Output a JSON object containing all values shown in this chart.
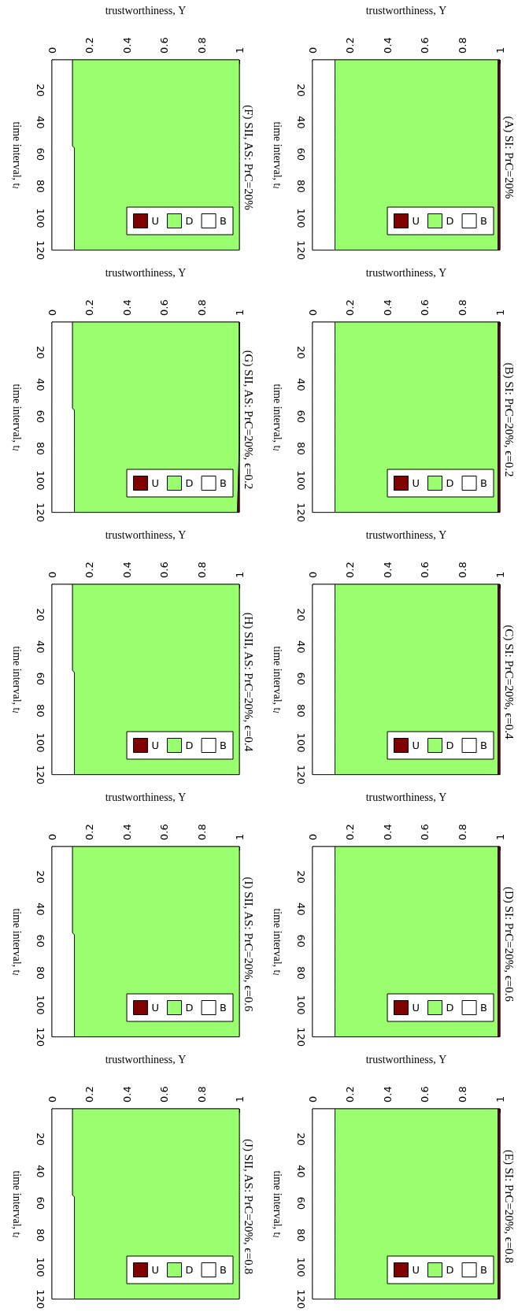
{
  "chart_data": [
    {
      "type": "area",
      "stacked": true,
      "orientation": "horizontal",
      "title": "(A) SI: PrC=20%",
      "xlabel": "trustworthiness, Υ",
      "ylabel": "time interval, t$_{l}$",
      "x": [
        1,
        10,
        20,
        30,
        40,
        50,
        60,
        70,
        80,
        90,
        100,
        110,
        120
      ],
      "xlim": [
        0,
        1
      ],
      "xticks": [
        0,
        0.2,
        0.4,
        0.6,
        0.8,
        1
      ],
      "ylim": [
        120,
        1
      ],
      "yticks": [
        20,
        40,
        60,
        80,
        100,
        120
      ],
      "legend": "bottom right",
      "series": [
        {
          "name": "B",
          "color": "#ffffff",
          "values": [
            0.12,
            0.12,
            0.12,
            0.12,
            0.12,
            0.12,
            0.12,
            0.12,
            0.12,
            0.12,
            0.12,
            0.12,
            0.12
          ]
        },
        {
          "name": "D",
          "color": "#99ff6e",
          "values": [
            0.87,
            0.87,
            0.87,
            0.87,
            0.87,
            0.87,
            0.87,
            0.87,
            0.87,
            0.87,
            0.87,
            0.87,
            0.87
          ]
        },
        {
          "name": "U",
          "color": "#7f0000",
          "values": [
            0.01,
            0.01,
            0.01,
            0.01,
            0.01,
            0.01,
            0.01,
            0.01,
            0.01,
            0.01,
            0.01,
            0.01,
            0.01
          ]
        }
      ]
    },
    {
      "type": "area",
      "stacked": true,
      "orientation": "horizontal",
      "title": "(B) SI: PrC=20%, ϵ=0.2",
      "xlabel": "trustworthiness, Υ",
      "ylabel": "time interval, t$_{l}$",
      "x": [
        1,
        10,
        20,
        30,
        40,
        50,
        60,
        70,
        80,
        90,
        100,
        110,
        120
      ],
      "xlim": [
        0,
        1
      ],
      "xticks": [
        0,
        0.2,
        0.4,
        0.6,
        0.8,
        1
      ],
      "ylim": [
        120,
        1
      ],
      "yticks": [
        20,
        40,
        60,
        80,
        100,
        120
      ],
      "legend": "bottom right",
      "series": [
        {
          "name": "B",
          "color": "#ffffff",
          "values": [
            0.12,
            0.12,
            0.12,
            0.12,
            0.12,
            0.12,
            0.12,
            0.12,
            0.12,
            0.12,
            0.12,
            0.12,
            0.12
          ]
        },
        {
          "name": "D",
          "color": "#99ff6e",
          "values": [
            0.87,
            0.87,
            0.87,
            0.87,
            0.87,
            0.87,
            0.87,
            0.87,
            0.87,
            0.87,
            0.87,
            0.87,
            0.87
          ]
        },
        {
          "name": "U",
          "color": "#7f0000",
          "values": [
            0.01,
            0.01,
            0.01,
            0.01,
            0.01,
            0.01,
            0.01,
            0.01,
            0.01,
            0.01,
            0.01,
            0.01,
            0.01
          ]
        }
      ]
    },
    {
      "type": "area",
      "stacked": true,
      "orientation": "horizontal",
      "title": "(C) SI: PrC=20%, ϵ=0.4",
      "xlabel": "trustworthiness, Υ",
      "ylabel": "time interval, t$_{l}$",
      "x": [
        1,
        10,
        20,
        30,
        40,
        50,
        60,
        70,
        80,
        90,
        100,
        110,
        120
      ],
      "xlim": [
        0,
        1
      ],
      "xticks": [
        0,
        0.2,
        0.4,
        0.6,
        0.8,
        1
      ],
      "ylim": [
        120,
        1
      ],
      "yticks": [
        20,
        40,
        60,
        80,
        100,
        120
      ],
      "legend": "bottom right",
      "series": [
        {
          "name": "B",
          "color": "#ffffff",
          "values": [
            0.12,
            0.12,
            0.12,
            0.12,
            0.12,
            0.12,
            0.12,
            0.12,
            0.12,
            0.12,
            0.12,
            0.12,
            0.12
          ]
        },
        {
          "name": "D",
          "color": "#99ff6e",
          "values": [
            0.87,
            0.87,
            0.87,
            0.87,
            0.87,
            0.87,
            0.87,
            0.87,
            0.87,
            0.87,
            0.87,
            0.87,
            0.87
          ]
        },
        {
          "name": "U",
          "color": "#7f0000",
          "values": [
            0.01,
            0.01,
            0.01,
            0.01,
            0.01,
            0.01,
            0.01,
            0.01,
            0.01,
            0.01,
            0.01,
            0.01,
            0.01
          ]
        }
      ]
    },
    {
      "type": "area",
      "stacked": true,
      "orientation": "horizontal",
      "title": "(D) SI: PrC=20%, ϵ=0.6",
      "xlabel": "trustworthiness, Υ",
      "ylabel": "time interval, t$_{l}$",
      "x": [
        1,
        10,
        20,
        30,
        40,
        50,
        60,
        70,
        80,
        90,
        100,
        110,
        120
      ],
      "xlim": [
        0,
        1
      ],
      "xticks": [
        0,
        0.2,
        0.4,
        0.6,
        0.8,
        1
      ],
      "ylim": [
        120,
        1
      ],
      "yticks": [
        20,
        40,
        60,
        80,
        100,
        120
      ],
      "legend": "bottom right",
      "series": [
        {
          "name": "B",
          "color": "#ffffff",
          "values": [
            0.12,
            0.12,
            0.12,
            0.12,
            0.12,
            0.12,
            0.12,
            0.12,
            0.12,
            0.12,
            0.12,
            0.12,
            0.12
          ]
        },
        {
          "name": "D",
          "color": "#99ff6e",
          "values": [
            0.87,
            0.87,
            0.87,
            0.87,
            0.87,
            0.87,
            0.87,
            0.87,
            0.87,
            0.87,
            0.87,
            0.87,
            0.87
          ]
        },
        {
          "name": "U",
          "color": "#7f0000",
          "values": [
            0.01,
            0.01,
            0.01,
            0.01,
            0.01,
            0.01,
            0.01,
            0.01,
            0.01,
            0.01,
            0.01,
            0.01,
            0.01
          ]
        }
      ]
    },
    {
      "type": "area",
      "stacked": true,
      "orientation": "horizontal",
      "title": "(E) SI: PrC=20%, ϵ=0.8",
      "xlabel": "trustworthiness, Υ",
      "ylabel": "time interval, t$_{l}$",
      "x": [
        1,
        10,
        20,
        30,
        40,
        50,
        60,
        70,
        80,
        90,
        100,
        110,
        120
      ],
      "xlim": [
        0,
        1
      ],
      "xticks": [
        0,
        0.2,
        0.4,
        0.6,
        0.8,
        1
      ],
      "ylim": [
        120,
        1
      ],
      "yticks": [
        20,
        40,
        60,
        80,
        100,
        120
      ],
      "legend": "bottom right",
      "series": [
        {
          "name": "B",
          "color": "#ffffff",
          "values": [
            0.12,
            0.12,
            0.12,
            0.12,
            0.12,
            0.12,
            0.12,
            0.12,
            0.12,
            0.12,
            0.12,
            0.12,
            0.12
          ]
        },
        {
          "name": "D",
          "color": "#99ff6e",
          "values": [
            0.87,
            0.87,
            0.87,
            0.87,
            0.87,
            0.87,
            0.87,
            0.87,
            0.87,
            0.87,
            0.87,
            0.87,
            0.87
          ]
        },
        {
          "name": "U",
          "color": "#7f0000",
          "values": [
            0.01,
            0.01,
            0.01,
            0.01,
            0.01,
            0.01,
            0.01,
            0.01,
            0.01,
            0.01,
            0.01,
            0.01,
            0.01
          ]
        }
      ]
    },
    {
      "type": "area",
      "stacked": true,
      "orientation": "horizontal",
      "title": "(F) SII, AS: PrC=20%",
      "xlabel": "trustworthiness, Υ",
      "ylabel": "time interval, t$_{l}$",
      "x": [
        1,
        55,
        56,
        120
      ],
      "xlim": [
        0,
        1
      ],
      "xticks": [
        0,
        0.2,
        0.4,
        0.6,
        0.8,
        1
      ],
      "ylim": [
        120,
        1
      ],
      "yticks": [
        20,
        40,
        60,
        80,
        100,
        120
      ],
      "legend": "bottom right",
      "series": [
        {
          "name": "B",
          "color": "#ffffff",
          "values": [
            0.11,
            0.11,
            0.12,
            0.12
          ]
        },
        {
          "name": "D",
          "color": "#99ff6e",
          "values": [
            0.89,
            0.89,
            0.88,
            0.88
          ]
        },
        {
          "name": "U",
          "color": "#7f0000",
          "values": [
            null,
            null,
            null,
            null
          ]
        }
      ]
    },
    {
      "type": "area",
      "stacked": true,
      "orientation": "horizontal",
      "title": "(G) SII, AS: PrC=20%, ϵ=0.2",
      "xlabel": "trustworthiness, Υ",
      "ylabel": "time interval, t$_{l}$",
      "x": [
        1,
        55,
        56,
        80,
        120
      ],
      "xlim": [
        0,
        1
      ],
      "xticks": [
        0,
        0.2,
        0.4,
        0.6,
        0.8,
        1
      ],
      "ylim": [
        120,
        1
      ],
      "yticks": [
        20,
        40,
        60,
        80,
        100,
        120
      ],
      "legend": "bottom right",
      "series": [
        {
          "name": "B",
          "color": "#ffffff",
          "values": [
            0.11,
            0.11,
            0.12,
            0.12,
            0.12
          ]
        },
        {
          "name": "D",
          "color": "#99ff6e",
          "values": [
            0.89,
            0.89,
            0.88,
            0.88,
            0.87
          ]
        },
        {
          "name": "U",
          "color": "#7f0000",
          "values": [
            0,
            0,
            0,
            0,
            0.01
          ]
        }
      ]
    },
    {
      "type": "area",
      "stacked": true,
      "orientation": "horizontal",
      "title": "(H) SII, AS: PrC=20%, ϵ=0.4",
      "xlabel": "trustworthiness, Υ",
      "ylabel": "time interval, t$_{l}$",
      "x": [
        1,
        55,
        56,
        120
      ],
      "xlim": [
        0,
        1
      ],
      "xticks": [
        0,
        0.2,
        0.4,
        0.6,
        0.8,
        1
      ],
      "ylim": [
        120,
        1
      ],
      "yticks": [
        20,
        40,
        60,
        80,
        100,
        120
      ],
      "legend": "bottom right",
      "series": [
        {
          "name": "B",
          "color": "#ffffff",
          "values": [
            0.11,
            0.11,
            0.12,
            0.12
          ]
        },
        {
          "name": "D",
          "color": "#99ff6e",
          "values": [
            0.89,
            0.89,
            0.88,
            0.88
          ]
        },
        {
          "name": "U",
          "color": "#7f0000",
          "values": [
            null,
            null,
            null,
            null
          ]
        }
      ]
    },
    {
      "type": "area",
      "stacked": true,
      "orientation": "horizontal",
      "title": "(I) SII, AS: PrC=20%, ϵ=0.6",
      "xlabel": "trustworthiness, Υ",
      "ylabel": "time interval, t$_{l}$",
      "x": [
        1,
        55,
        56,
        120
      ],
      "xlim": [
        0,
        1
      ],
      "xticks": [
        0,
        0.2,
        0.4,
        0.6,
        0.8,
        1
      ],
      "ylim": [
        120,
        1
      ],
      "yticks": [
        20,
        40,
        60,
        80,
        100,
        120
      ],
      "legend": "bottom right",
      "series": [
        {
          "name": "B",
          "color": "#ffffff",
          "values": [
            0.11,
            0.11,
            0.12,
            0.12
          ]
        },
        {
          "name": "D",
          "color": "#99ff6e",
          "values": [
            0.89,
            0.89,
            0.88,
            0.88
          ]
        },
        {
          "name": "U",
          "color": "#7f0000",
          "values": [
            null,
            null,
            null,
            null
          ]
        }
      ]
    },
    {
      "type": "area",
      "stacked": true,
      "orientation": "horizontal",
      "title": "(J) SII, AS: PrC=20%, ϵ=0.8",
      "xlabel": "trustworthiness, Υ",
      "ylabel": "time interval, t$_{l}$",
      "x": [
        1,
        55,
        56,
        120
      ],
      "xlim": [
        0,
        1
      ],
      "xticks": [
        0,
        0.2,
        0.4,
        0.6,
        0.8,
        1
      ],
      "ylim": [
        120,
        1
      ],
      "yticks": [
        20,
        40,
        60,
        80,
        100,
        120
      ],
      "legend": "bottom right",
      "series": [
        {
          "name": "B",
          "color": "#ffffff",
          "values": [
            0.11,
            0.11,
            0.12,
            0.12
          ]
        },
        {
          "name": "D",
          "color": "#99ff6e",
          "values": [
            0.89,
            0.89,
            0.88,
            0.88
          ]
        },
        {
          "name": "U",
          "color": "#7f0000",
          "values": [
            null,
            null,
            null,
            null
          ]
        }
      ]
    }
  ]
}
